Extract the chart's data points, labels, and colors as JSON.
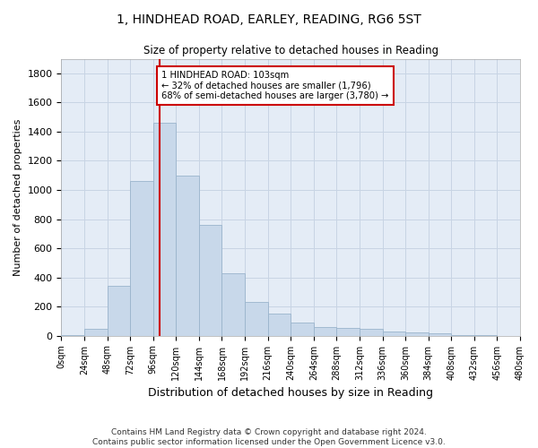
{
  "title_line1": "1, HINDHEAD ROAD, EARLEY, READING, RG6 5ST",
  "title_line2": "Size of property relative to detached houses in Reading",
  "xlabel": "Distribution of detached houses by size in Reading",
  "ylabel": "Number of detached properties",
  "bar_edges": [
    0,
    24,
    48,
    72,
    96,
    120,
    144,
    168,
    192,
    216,
    240,
    264,
    288,
    312,
    336,
    360,
    384,
    408,
    432,
    456,
    480
  ],
  "bar_heights": [
    3,
    50,
    340,
    1060,
    1460,
    1100,
    760,
    430,
    230,
    150,
    90,
    60,
    55,
    50,
    30,
    20,
    15,
    5,
    2,
    1
  ],
  "bar_color": "#c8d8ea",
  "bar_edge_color": "#9ab4cc",
  "property_sqm": 103,
  "vline_color": "#cc0000",
  "annotation_text": "1 HINDHEAD ROAD: 103sqm\n← 32% of detached houses are smaller (1,796)\n68% of semi-detached houses are larger (3,780) →",
  "annotation_box_color": "#ffffff",
  "annotation_box_edge": "#cc0000",
  "grid_color": "#c8d4e4",
  "background_color": "#e4ecf6",
  "ylim": [
    0,
    1900
  ],
  "yticks": [
    0,
    200,
    400,
    600,
    800,
    1000,
    1200,
    1400,
    1600,
    1800
  ],
  "footer_line1": "Contains HM Land Registry data © Crown copyright and database right 2024.",
  "footer_line2": "Contains public sector information licensed under the Open Government Licence v3.0."
}
